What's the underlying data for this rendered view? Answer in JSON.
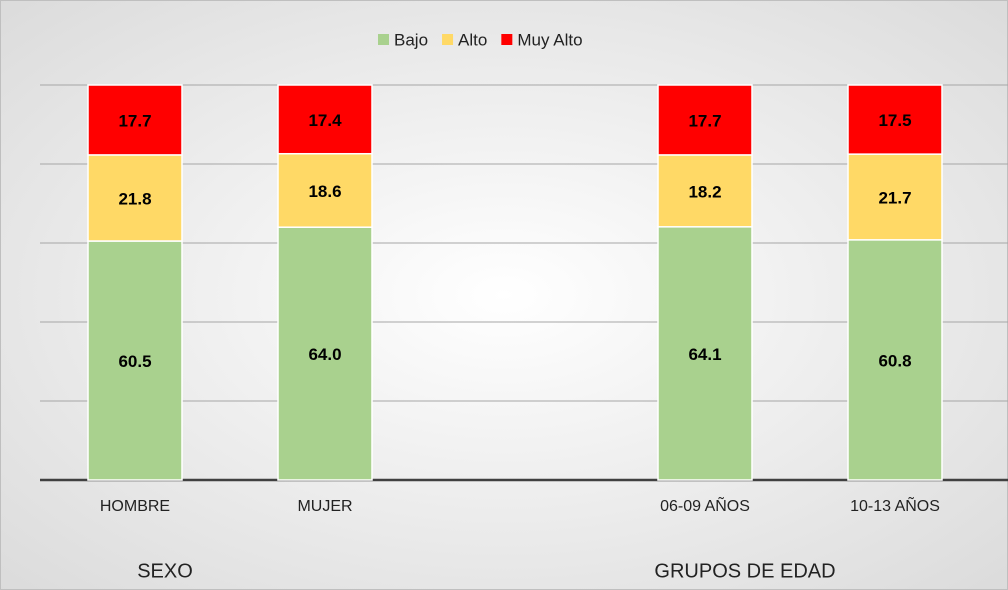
{
  "chart_data": {
    "type": "stacked_bar",
    "categories": [
      "HOMBRE",
      "MUJER",
      null,
      "06-09 AÑOS",
      "10-13 AÑOS"
    ],
    "series": [
      {
        "name": "Bajo",
        "color": "#a9d18e",
        "values": [
          60.5,
          64.0,
          null,
          64.1,
          60.8
        ],
        "value_labels": [
          "60.5",
          "64.0",
          null,
          "64.1",
          "60.8"
        ]
      },
      {
        "name": "Alto",
        "color": "#ffd966",
        "values": [
          21.8,
          18.6,
          null,
          18.2,
          21.7
        ]
      },
      {
        "name": "Muy Alto",
        "color": "#ff0000",
        "values": [
          17.7,
          17.4,
          null,
          17.7,
          17.5
        ]
      }
    ],
    "group_labels": [
      "SEXO",
      "GRUPOS DE  EDAD"
    ],
    "ylim": [
      0,
      100
    ],
    "yticks": [
      0,
      20,
      40,
      60,
      80,
      100
    ],
    "grid": true,
    "ytick_labels": false,
    "legend": "top"
  }
}
